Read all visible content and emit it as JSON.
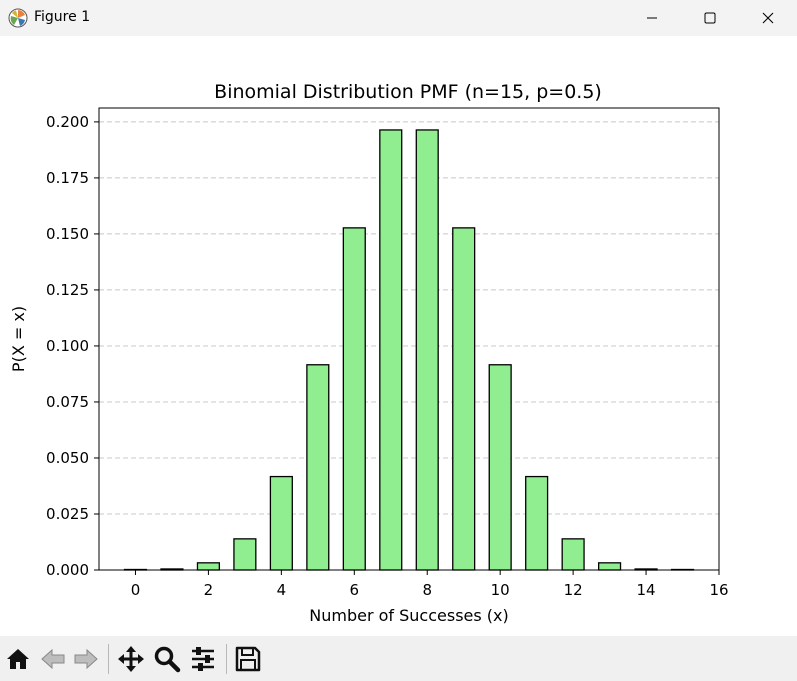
{
  "window": {
    "title": "Figure 1"
  },
  "icons": {
    "app": "matplotlib-logo-icon",
    "minimize": "minimize-icon",
    "maximize": "maximize-icon",
    "close": "close-icon"
  },
  "toolbar": {
    "buttons": [
      {
        "name": "home-icon"
      },
      {
        "name": "back-arrow-icon"
      },
      {
        "name": "forward-arrow-icon"
      },
      {
        "name": "pan-move-icon"
      },
      {
        "name": "zoom-magnifier-icon"
      },
      {
        "name": "configure-subplots-icon"
      },
      {
        "name": "save-floppy-icon"
      }
    ]
  },
  "chart_data": {
    "type": "bar",
    "title": "Binomial Distribution PMF (n=15, p=0.5)",
    "xlabel": "Number of Successes (x)",
    "ylabel": "P(X = x)",
    "x": [
      0,
      1,
      2,
      3,
      4,
      5,
      6,
      7,
      8,
      9,
      10,
      11,
      12,
      13,
      14,
      15
    ],
    "values": [
      3.05e-05,
      0.000458,
      0.0032,
      0.0139,
      0.0417,
      0.0916,
      0.1527,
      0.1964,
      0.1964,
      0.1527,
      0.0916,
      0.0417,
      0.0139,
      0.0032,
      0.000458,
      3.05e-05
    ],
    "bar_width": 0.6,
    "xlim": [
      -1.0,
      16.0
    ],
    "ylim": [
      0,
      0.2062
    ],
    "xticks": [
      0,
      2,
      4,
      6,
      8,
      10,
      12,
      14,
      16
    ],
    "xtick_labels": [
      "0",
      "2",
      "4",
      "6",
      "8",
      "10",
      "12",
      "14",
      "16"
    ],
    "yticks": [
      0.0,
      0.025,
      0.05,
      0.075,
      0.1,
      0.125,
      0.15,
      0.175,
      0.2
    ],
    "ytick_labels": [
      "0.000",
      "0.025",
      "0.050",
      "0.075",
      "0.100",
      "0.125",
      "0.150",
      "0.175",
      "0.200"
    ],
    "grid": {
      "axis": "y",
      "style": "dashed"
    },
    "colors": {
      "bar_fill": "#90ee90",
      "bar_edge": "#000000",
      "grid": "#c8c8c8"
    }
  }
}
